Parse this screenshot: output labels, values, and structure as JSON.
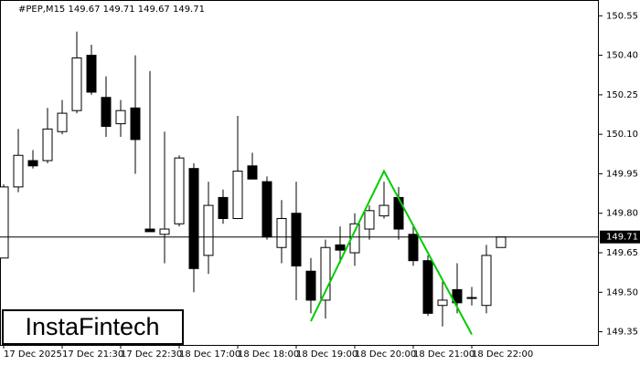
{
  "chart_data": {
    "type": "candlestick",
    "header": "#PEP,M15  149.67 149.71 149.67 149.71",
    "logo": "InstaFintech",
    "categories": [
      "17 Dec 2025",
      null,
      null,
      null,
      "17 Dec 21:30",
      null,
      null,
      null,
      "17 Dec 22:30",
      null,
      null,
      null,
      "18 Dec 17:00",
      null,
      null,
      null,
      "18 Dec 18:00",
      null,
      null,
      null,
      "18 Dec 19:00",
      null,
      null,
      null,
      "18 Dec 20:00",
      null,
      null,
      null,
      "18 Dec 21:00",
      null,
      null,
      null,
      "18 Dec 22:00",
      null,
      null
    ],
    "open": [
      149.63,
      149.9,
      150.0,
      150.0,
      150.11,
      150.19,
      150.4,
      150.24,
      150.14,
      150.2,
      149.74,
      149.72,
      149.76,
      149.97,
      149.64,
      149.86,
      149.78,
      149.98,
      149.92,
      149.67,
      149.8,
      149.58,
      149.47,
      149.68,
      149.65,
      149.74,
      149.79,
      149.86,
      149.72,
      149.62,
      149.45,
      149.51,
      149.48,
      149.45,
      149.67
    ],
    "high": [
      149.91,
      150.12,
      150.04,
      150.2,
      150.23,
      150.49,
      150.44,
      150.32,
      150.23,
      150.4,
      150.34,
      150.11,
      150.02,
      149.99,
      149.92,
      149.89,
      150.17,
      150.03,
      149.94,
      149.85,
      149.92,
      149.63,
      149.7,
      149.75,
      149.8,
      149.83,
      149.92,
      149.9,
      149.75,
      149.64,
      149.54,
      149.61,
      149.52,
      149.68,
      149.71
    ],
    "low": [
      149.63,
      149.88,
      149.97,
      149.99,
      150.1,
      150.18,
      150.25,
      150.09,
      150.09,
      149.95,
      149.73,
      149.61,
      149.75,
      149.5,
      149.57,
      149.76,
      149.78,
      149.93,
      149.7,
      149.61,
      149.47,
      149.42,
      149.4,
      149.61,
      149.6,
      149.7,
      149.78,
      149.7,
      149.6,
      149.41,
      149.37,
      149.42,
      149.45,
      149.42,
      149.67
    ],
    "close": [
      149.9,
      150.02,
      149.98,
      150.12,
      150.18,
      150.39,
      150.26,
      150.13,
      150.19,
      150.08,
      149.73,
      149.74,
      150.01,
      149.59,
      149.83,
      149.78,
      149.96,
      149.93,
      149.71,
      149.78,
      149.6,
      149.47,
      149.67,
      149.66,
      149.76,
      149.81,
      149.83,
      149.74,
      149.62,
      149.42,
      149.47,
      149.46,
      149.48,
      149.64,
      149.71
    ],
    "up_color": "#ffffff",
    "down_color": "#000000",
    "last_price": 149.71,
    "pattern": {
      "color": "#00cc00",
      "x": [
        21,
        26,
        32
      ],
      "y": [
        149.39,
        149.96,
        149.34
      ]
    },
    "ylim": [
      149.3,
      150.61
    ],
    "yticks": [
      150.55,
      {
        "value": 150.4,
        "label": "150.40"
      },
      150.25,
      {
        "value": 150.1,
        "label": "150.10"
      },
      149.95,
      {
        "value": 149.8,
        "label": "149.80"
      },
      149.65,
      {
        "value": 149.5,
        "label": "149.50"
      },
      149.35
    ]
  }
}
